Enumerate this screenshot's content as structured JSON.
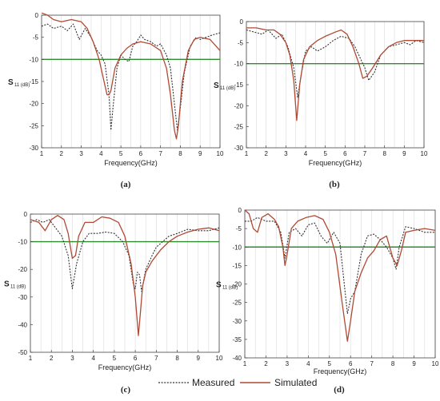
{
  "colors": {
    "measured": "#333333",
    "simulated": "#b04a35",
    "threshold": "#2e8b2e",
    "grid": "#d9d9d9",
    "axis": "#444444"
  },
  "legend": {
    "measured": "Measured",
    "simulated": "Simulated"
  },
  "chart_data": [
    {
      "type": "line",
      "caption": "(a)",
      "xlabel": "Frequency(GHz)",
      "ylabel": "S",
      "ylabel_sub": "11 (dB)",
      "xlim": [
        1,
        10
      ],
      "ylim": [
        -30,
        0
      ],
      "xticks": [
        1,
        2,
        3,
        4,
        5,
        6,
        7,
        8,
        9,
        10
      ],
      "yticks": [
        0,
        -5,
        -10,
        -15,
        -20,
        -25,
        -30
      ],
      "threshold": -10,
      "series": [
        {
          "name": "Measured",
          "x": [
            1,
            1.3,
            1.6,
            2.0,
            2.3,
            2.6,
            2.9,
            3.2,
            3.5,
            3.8,
            4.0,
            4.2,
            4.4,
            4.5,
            4.6,
            4.8,
            5.0,
            5.2,
            5.4,
            5.6,
            5.8,
            6.0,
            6.2,
            6.5,
            6.8,
            7.0,
            7.3,
            7.5,
            7.7,
            7.85,
            8.0,
            8.2,
            8.5,
            8.8,
            9.0,
            9.3,
            9.6,
            10
          ],
          "y": [
            -2.5,
            -2,
            -3,
            -2.5,
            -3.5,
            -2,
            -5.5,
            -3,
            -5,
            -8,
            -9,
            -11,
            -18,
            -26,
            -21,
            -12,
            -9,
            -10,
            -10.5,
            -7,
            -6,
            -4.5,
            -5.5,
            -6,
            -7,
            -6.5,
            -9,
            -12,
            -20,
            -26,
            -21,
            -13,
            -7,
            -5,
            -5.5,
            -5,
            -4.5,
            -4
          ]
        },
        {
          "name": "Simulated",
          "x": [
            1,
            1.3,
            1.6,
            2.0,
            2.5,
            3.0,
            3.3,
            3.6,
            3.9,
            4.1,
            4.3,
            4.4,
            4.5,
            4.7,
            5.0,
            5.3,
            5.6,
            6.0,
            6.5,
            7.0,
            7.3,
            7.5,
            7.7,
            7.8,
            7.9,
            8.1,
            8.4,
            8.7,
            9.0,
            9.5,
            10
          ],
          "y": [
            0.5,
            0,
            -1,
            -1.5,
            -1,
            -1.5,
            -3,
            -6,
            -10,
            -14,
            -18,
            -18,
            -17,
            -12,
            -9,
            -7.5,
            -6.5,
            -6,
            -6.5,
            -8,
            -12,
            -18,
            -26,
            -28,
            -25,
            -15,
            -8,
            -5.5,
            -5,
            -5.5,
            -8
          ]
        }
      ]
    },
    {
      "type": "line",
      "caption": "(b)",
      "xlabel": "Frequency(GHz)",
      "ylabel": "S",
      "ylabel_sub": "11 (dB)",
      "xlim": [
        1,
        10
      ],
      "ylim": [
        -30,
        0
      ],
      "xticks": [
        1,
        2,
        3,
        4,
        5,
        6,
        7,
        8,
        9,
        10
      ],
      "yticks": [
        0,
        -5,
        -10,
        -15,
        -20,
        -25,
        -30
      ],
      "threshold": -10,
      "series": [
        {
          "name": "Measured",
          "x": [
            1,
            1.4,
            1.8,
            2.1,
            2.5,
            2.8,
            3.1,
            3.4,
            3.6,
            3.8,
            4.0,
            4.3,
            4.6,
            5.0,
            5.4,
            5.8,
            6.2,
            6.5,
            6.8,
            7.0,
            7.2,
            7.5,
            7.8,
            8.2,
            8.6,
            9.0,
            9.3,
            9.6,
            10
          ],
          "y": [
            -2,
            -2.5,
            -3,
            -2,
            -4,
            -3,
            -6,
            -11,
            -18,
            -12,
            -7,
            -6,
            -7,
            -6,
            -4.5,
            -3.5,
            -4,
            -6,
            -9,
            -11,
            -14,
            -12,
            -8,
            -6,
            -5.5,
            -5,
            -5.5,
            -4.5,
            -5
          ]
        },
        {
          "name": "Simulated",
          "x": [
            1,
            1.5,
            2.0,
            2.4,
            2.7,
            3.0,
            3.2,
            3.4,
            3.55,
            3.7,
            3.9,
            4.2,
            4.6,
            5.0,
            5.5,
            5.8,
            6.1,
            6.4,
            6.7,
            6.9,
            7.1,
            7.4,
            7.8,
            8.2,
            8.6,
            9.0,
            9.5,
            10
          ],
          "y": [
            -1.5,
            -1.5,
            -2,
            -2,
            -3,
            -5,
            -8,
            -14,
            -23.5,
            -15,
            -9,
            -6,
            -4.5,
            -3.5,
            -2.5,
            -2,
            -3,
            -6,
            -10,
            -13.5,
            -13,
            -11,
            -8,
            -6,
            -5,
            -4.5,
            -4.5,
            -4.5
          ]
        }
      ]
    },
    {
      "type": "line",
      "caption": "(c)",
      "xlabel": "Frequency(GHz)",
      "ylabel": "S",
      "ylabel_sub": "11 (dB)",
      "xlim": [
        1,
        10
      ],
      "ylim": [
        -50,
        0
      ],
      "xticks": [
        1,
        2,
        3,
        4,
        5,
        6,
        7,
        8,
        9,
        10
      ],
      "yticks": [
        0,
        -10,
        -20,
        -30,
        -40,
        -50
      ],
      "threshold": -10,
      "series": [
        {
          "name": "Measured",
          "x": [
            1,
            1.3,
            1.6,
            1.9,
            2.2,
            2.5,
            2.8,
            3.0,
            3.2,
            3.5,
            3.8,
            4.2,
            4.6,
            5.0,
            5.4,
            5.7,
            5.9,
            6.0,
            6.1,
            6.2,
            6.3,
            6.5,
            6.8,
            7.0,
            7.3,
            7.6,
            8.0,
            8.5,
            9.0,
            9.5,
            10
          ],
          "y": [
            -3,
            -2,
            -3,
            -2,
            -5,
            -8,
            -15,
            -27,
            -18,
            -10,
            -7,
            -7,
            -6.5,
            -7,
            -10,
            -15,
            -25,
            -27,
            -21,
            -22,
            -28,
            -20,
            -15,
            -12,
            -10,
            -8,
            -7,
            -5.5,
            -6,
            -6,
            -5
          ]
        },
        {
          "name": "Simulated",
          "x": [
            1,
            1.4,
            1.7,
            2.0,
            2.3,
            2.6,
            2.8,
            3.0,
            3.15,
            3.3,
            3.6,
            4.0,
            4.4,
            4.8,
            5.2,
            5.5,
            5.8,
            6.0,
            6.15,
            6.25,
            6.35,
            6.5,
            6.8,
            7.2,
            7.6,
            8.0,
            8.5,
            9.0,
            9.5,
            10
          ],
          "y": [
            -2,
            -3,
            -6,
            -2,
            -0.5,
            -2,
            -7,
            -16,
            -15,
            -8,
            -3,
            -3,
            -1,
            -1.5,
            -3,
            -8,
            -18,
            -30,
            -44,
            -35,
            -26,
            -21,
            -17,
            -13,
            -10,
            -8,
            -6.5,
            -5.5,
            -5,
            -6
          ]
        }
      ]
    },
    {
      "type": "line",
      "caption": "(d)",
      "xlabel": "Frequency(GHz)",
      "ylabel": "S",
      "ylabel_sub": "11 (dB)",
      "xlim": [
        1,
        10
      ],
      "ylim": [
        -40,
        0
      ],
      "xticks": [
        1,
        2,
        3,
        4,
        5,
        6,
        7,
        8,
        9,
        10
      ],
      "yticks": [
        0,
        -5,
        -10,
        -15,
        -20,
        -25,
        -30,
        -35,
        -40
      ],
      "threshold": -10,
      "series": [
        {
          "name": "Measured",
          "x": [
            1,
            1.3,
            1.6,
            2.0,
            2.4,
            2.7,
            2.9,
            3.1,
            3.4,
            3.7,
            4.0,
            4.3,
            4.6,
            4.9,
            5.2,
            5.5,
            5.7,
            5.85,
            6.0,
            6.2,
            6.5,
            6.8,
            7.1,
            7.4,
            7.7,
            8.0,
            8.15,
            8.3,
            8.6,
            9.0,
            9.5,
            10
          ],
          "y": [
            -3,
            -3,
            -2,
            -3,
            -3,
            -6,
            -13,
            -6,
            -5,
            -7,
            -4,
            -3.5,
            -7,
            -9,
            -6,
            -9,
            -20,
            -28,
            -24,
            -22,
            -12,
            -7,
            -6.5,
            -8,
            -10,
            -13,
            -16,
            -10,
            -4.5,
            -5,
            -6,
            -6
          ]
        },
        {
          "name": "Simulated",
          "x": [
            1,
            1.2,
            1.4,
            1.6,
            1.8,
            2.1,
            2.4,
            2.6,
            2.8,
            2.9,
            3.0,
            3.2,
            3.5,
            3.9,
            4.3,
            4.7,
            5.0,
            5.3,
            5.6,
            5.85,
            6.0,
            6.2,
            6.5,
            6.8,
            7.1,
            7.4,
            7.7,
            8.0,
            8.2,
            8.4,
            8.6,
            9.0,
            9.5,
            10
          ],
          "y": [
            0,
            -1,
            -5,
            -6,
            -2,
            -1,
            -2.5,
            -4.5,
            -10,
            -15,
            -12,
            -5,
            -3,
            -2,
            -1.5,
            -2.5,
            -6,
            -12,
            -25,
            -35.5,
            -30,
            -22,
            -17,
            -13,
            -11,
            -8,
            -7,
            -13,
            -15,
            -11,
            -6,
            -5.5,
            -5,
            -5.5
          ]
        }
      ]
    }
  ]
}
